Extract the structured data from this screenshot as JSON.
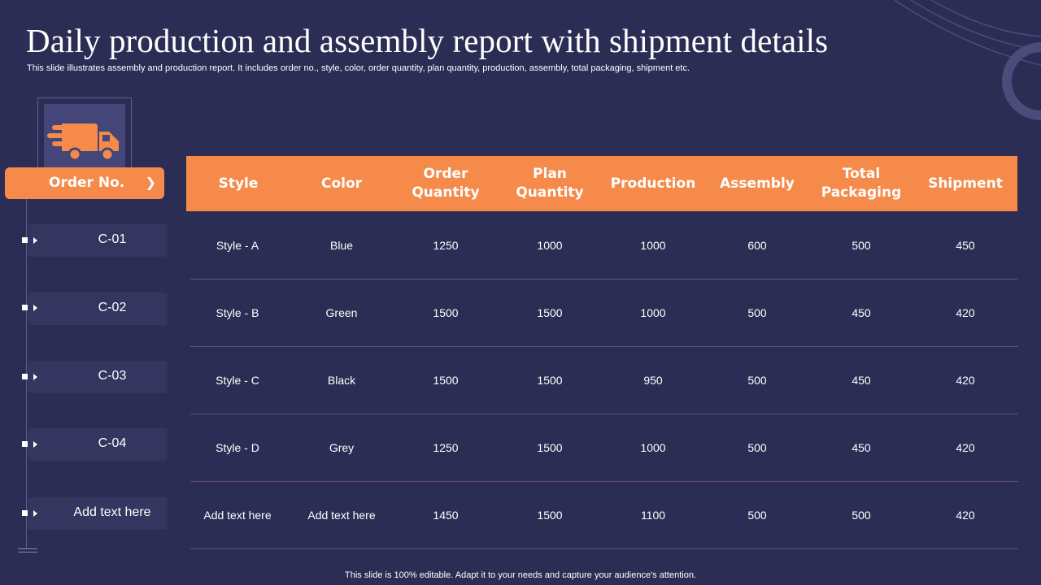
{
  "header": {
    "title": "Daily production and assembly report with shipment details",
    "subtitle": "This slide illustrates assembly and production report. It includes order no., style, color, order quantity, plan quantity, production, assembly, total packaging, shipment etc."
  },
  "icon": "delivery-truck-icon",
  "order_column": {
    "header": "Order No.",
    "chevron": "❯",
    "items": [
      "C-01",
      "C-02",
      "C-03",
      "C-04",
      "Add text here"
    ]
  },
  "table": {
    "columns": [
      "Style",
      "Color",
      "Order\nQuantity",
      "Plan\nQuantity",
      "Production",
      "Assembly",
      "Total\nPackaging",
      "Shipment"
    ],
    "rows": [
      [
        "Style - A",
        "Blue",
        "1250",
        "1000",
        "1000",
        "600",
        "500",
        "450"
      ],
      [
        "Style - B",
        "Green",
        "1500",
        "1500",
        "1000",
        "500",
        "450",
        "420"
      ],
      [
        "Style - C",
        "Black",
        "1500",
        "1500",
        "950",
        "500",
        "450",
        "420"
      ],
      [
        "Style - D",
        "Grey",
        "1250",
        "1500",
        "1000",
        "500",
        "450",
        "420"
      ],
      [
        "Add text here",
        "Add text here",
        "1450",
        "1500",
        "1100",
        "500",
        "500",
        "420"
      ]
    ]
  },
  "footer": "This slide is 100% editable. Adapt it to your needs and capture your audience's attention.",
  "colors": {
    "background": "#2c2d54",
    "accent": "#f58a4b"
  }
}
